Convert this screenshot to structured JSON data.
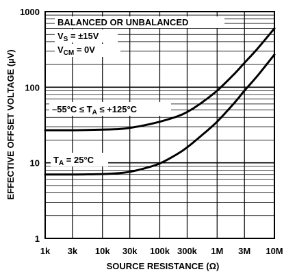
{
  "chart_data": {
    "type": "line",
    "xlabel": "SOURCE RESISTANCE (Ω)",
    "ylabel": "EFFECTIVE OFFSET VOLTAGE (µV)",
    "xscale": "log",
    "yscale": "log",
    "xlim": [
      1000,
      10000000
    ],
    "ylim": [
      1,
      1000
    ],
    "x_ticks": [
      {
        "value": 1000,
        "label": "1k"
      },
      {
        "value": 3000,
        "label": "3k"
      },
      {
        "value": 10000,
        "label": "10k"
      },
      {
        "value": 30000,
        "label": "30k"
      },
      {
        "value": 100000,
        "label": "100k"
      },
      {
        "value": 300000,
        "label": "300k"
      },
      {
        "value": 1000000,
        "label": "1M"
      },
      {
        "value": 3000000,
        "label": "3M"
      },
      {
        "value": 10000000,
        "label": "10M"
      }
    ],
    "y_ticks": [
      {
        "value": 1,
        "label": "1"
      },
      {
        "value": 10,
        "label": "10"
      },
      {
        "value": 100,
        "label": "100"
      },
      {
        "value": 1000,
        "label": "1000"
      }
    ],
    "grid": true,
    "conditions": {
      "line1": "BALANCED OR UNBALANCED",
      "vs_main": "V",
      "vs_sub": "S",
      "vs_value": " = ±15V",
      "vcm_main": "V",
      "vcm_sub": "CM",
      "vcm_value": " = 0V"
    },
    "series": [
      {
        "label_pre": "–55°C ≤ T",
        "label_sub": "A",
        "label_post": " ≤ +125°C",
        "x": [
          1000,
          3000,
          10000,
          20000,
          30000,
          50000,
          100000,
          200000,
          300000,
          500000,
          1000000,
          2000000,
          3000000,
          5000000,
          10000000
        ],
        "y": [
          27,
          27,
          27.5,
          28,
          29,
          31,
          35,
          41,
          47,
          60,
          90,
          150,
          210,
          320,
          600
        ]
      },
      {
        "label_pre": "T",
        "label_sub": "A",
        "label_post": " = 25°C",
        "x": [
          1000,
          3000,
          10000,
          20000,
          30000,
          50000,
          100000,
          200000,
          300000,
          500000,
          1000000,
          2000000,
          3000000,
          5000000,
          10000000
        ],
        "y": [
          7,
          7,
          7.1,
          7.3,
          7.6,
          8.3,
          9.8,
          13,
          16,
          22,
          35,
          62,
          90,
          140,
          270
        ]
      }
    ]
  }
}
